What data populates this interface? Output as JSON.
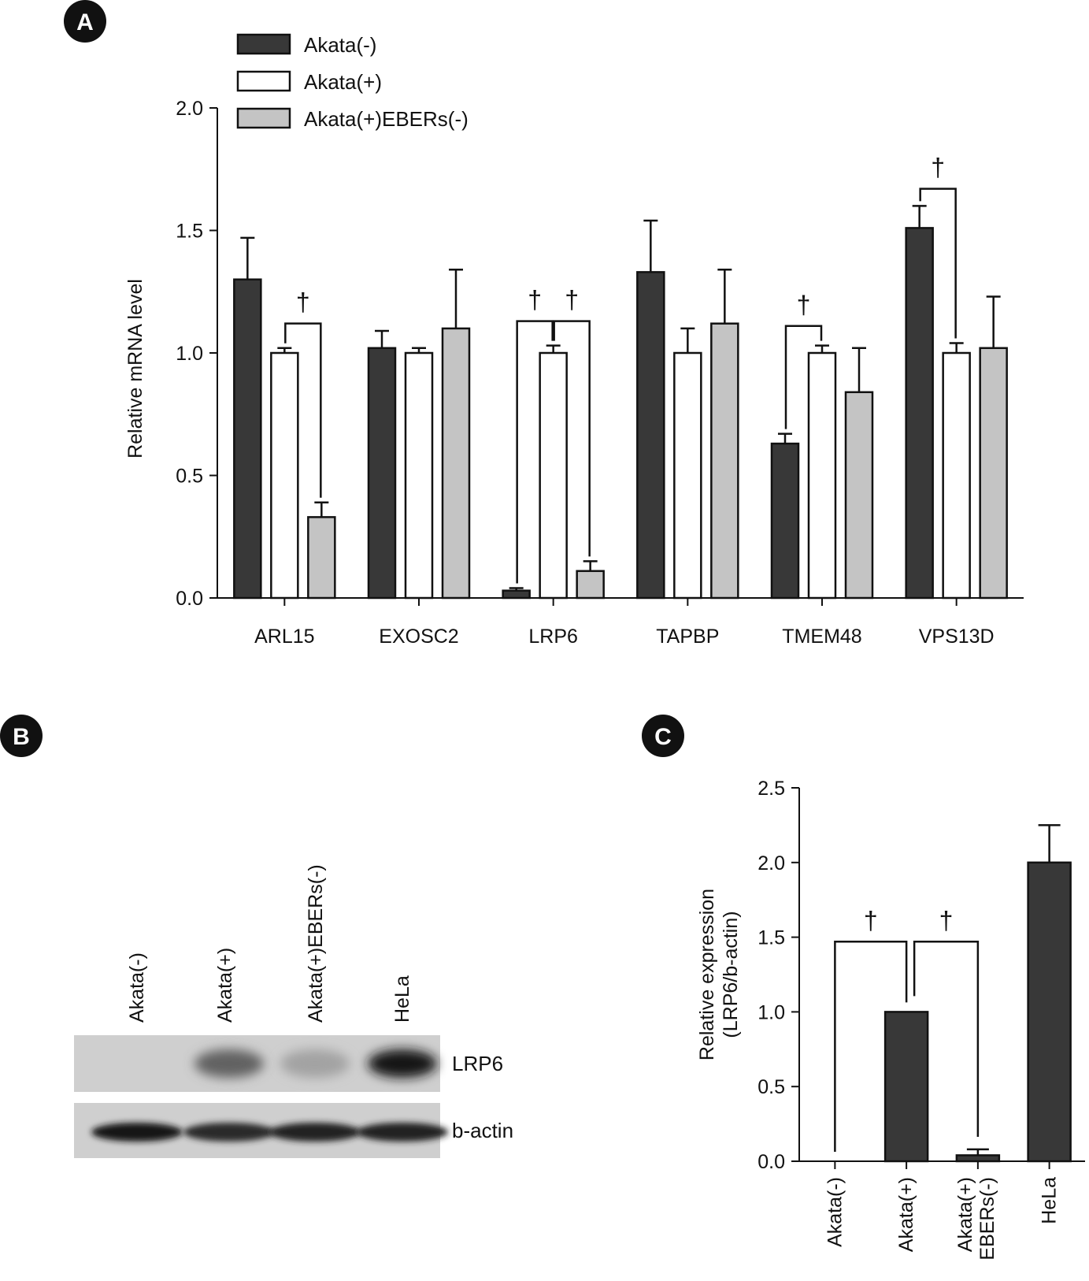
{
  "panels": {
    "a": {
      "letter": "A"
    },
    "b": {
      "letter": "B"
    },
    "c": {
      "letter": "C"
    }
  },
  "colors": {
    "akata_minus": "#383838",
    "akata_plus": "#ffffff",
    "akata_plus_ebers_minus": "#c4c4c4",
    "axis": "#111111"
  },
  "chart_data": [
    {
      "panel": "A",
      "type": "bar",
      "ylabel": "Relative mRNA level",
      "xlabel": "",
      "ylim": [
        0,
        2.0
      ],
      "yticks": [
        "0.0",
        "0.5",
        "1.0",
        "1.5",
        "2.0"
      ],
      "categories": [
        "ARL15",
        "EXOSC2",
        "LRP6",
        "TAPBP",
        "TMEM48",
        "VPS13D"
      ],
      "legend_position": "top-left",
      "series": [
        {
          "name": "Akata(-)",
          "color": "#383838",
          "values": [
            1.3,
            1.02,
            0.03,
            1.33,
            0.63,
            1.51
          ],
          "errors": [
            0.17,
            0.07,
            0.01,
            0.21,
            0.04,
            0.09
          ]
        },
        {
          "name": "Akata(+)",
          "color": "#ffffff",
          "values": [
            1.0,
            1.0,
            1.0,
            1.0,
            1.0,
            1.0
          ],
          "errors": [
            0.02,
            0.02,
            0.03,
            0.1,
            0.03,
            0.04
          ]
        },
        {
          "name": "Akata(+)EBERs(-)",
          "color": "#c4c4c4",
          "values": [
            0.33,
            1.1,
            0.11,
            1.12,
            0.84,
            1.02
          ],
          "errors": [
            0.06,
            0.24,
            0.04,
            0.22,
            0.18,
            0.21
          ]
        }
      ],
      "significance_marker": "†",
      "brackets": [
        {
          "category": 0,
          "from_series": 1,
          "to_series": 2
        },
        {
          "category": 2,
          "from_series": 0,
          "to_series": 1
        },
        {
          "category": 2,
          "from_series": 1,
          "to_series": 2
        },
        {
          "category": 4,
          "from_series": 0,
          "to_series": 1
        },
        {
          "category": 5,
          "from_series": 0,
          "to_series": 1
        }
      ]
    },
    {
      "panel": "C",
      "type": "bar",
      "ylabel_line1": "Relative expression",
      "ylabel_line2": "(LRP6/b-actin)",
      "xlabel": "",
      "ylim": [
        0,
        2.5
      ],
      "yticks": [
        "0.0",
        "0.5",
        "1.0",
        "1.5",
        "2.0",
        "2.5"
      ],
      "categories": [
        "Akata(-)",
        "Akata(+)",
        "Akata(+)",
        "HeLa"
      ],
      "category_second_lines": [
        "",
        "",
        "EBERs(-)",
        ""
      ],
      "values": [
        0.0,
        1.0,
        0.04,
        2.0
      ],
      "errors": [
        0.0,
        0.0,
        0.04,
        0.25
      ],
      "color": "#383838",
      "significance_marker": "†",
      "brackets": [
        {
          "from": 0,
          "to": 1
        },
        {
          "from": 1,
          "to": 2
        }
      ]
    }
  ],
  "western_blot": {
    "lanes": [
      "Akata(-)",
      "Akata(+)",
      "Akata(+)EBERs(-)",
      "HeLa"
    ],
    "bands": [
      {
        "label": "LRP6",
        "intensity": [
          0.0,
          0.55,
          0.2,
          0.95
        ]
      },
      {
        "label": "b-actin",
        "intensity": [
          0.95,
          0.85,
          0.9,
          0.9
        ]
      }
    ]
  }
}
